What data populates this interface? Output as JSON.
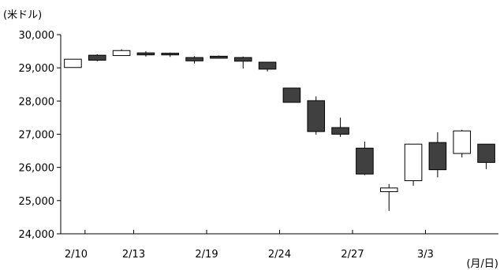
{
  "chart_data": {
    "type": "candlestick",
    "y_unit": "(米ドル)",
    "x_unit": "(月/日)",
    "ylim": [
      24000,
      30000
    ],
    "yticks": [
      24000,
      25000,
      26000,
      27000,
      28000,
      29000,
      30000
    ],
    "ytick_labels": [
      "24,000",
      "25,000",
      "26,000",
      "27,000",
      "28,000",
      "29,000",
      "30,000"
    ],
    "xtick_labels": [
      {
        "label": "2/10",
        "after_index": 0
      },
      {
        "label": "2/13",
        "after_index": 2
      },
      {
        "label": "2/19",
        "after_index": 5
      },
      {
        "label": "2/24",
        "after_index": 8
      },
      {
        "label": "2/27",
        "after_index": 11
      },
      {
        "label": "3/3",
        "after_index": 14
      }
    ],
    "grid": false,
    "legend": "none",
    "up_color": "#ffffff",
    "down_color": "#404040",
    "candles": [
      {
        "open": 29010,
        "high": 29260,
        "low": 29010,
        "close": 29260
      },
      {
        "open": 29380,
        "high": 29410,
        "low": 29200,
        "close": 29230
      },
      {
        "open": 29370,
        "high": 29560,
        "low": 29370,
        "close": 29520
      },
      {
        "open": 29450,
        "high": 29500,
        "low": 29340,
        "close": 29390
      },
      {
        "open": 29440,
        "high": 29460,
        "low": 29330,
        "close": 29390
      },
      {
        "open": 29310,
        "high": 29350,
        "low": 29130,
        "close": 29210
      },
      {
        "open": 29350,
        "high": 29370,
        "low": 29280,
        "close": 29290
      },
      {
        "open": 29310,
        "high": 29340,
        "low": 28980,
        "close": 29200
      },
      {
        "open": 29170,
        "high": 29170,
        "low": 28890,
        "close": 28960
      },
      {
        "open": 28390,
        "high": 28400,
        "low": 27960,
        "close": 27960
      },
      {
        "open": 28010,
        "high": 28140,
        "low": 26990,
        "close": 27080
      },
      {
        "open": 27200,
        "high": 27500,
        "low": 26920,
        "close": 27000
      },
      {
        "open": 26580,
        "high": 26780,
        "low": 25770,
        "close": 25800
      },
      {
        "open": 25270,
        "high": 25500,
        "low": 24690,
        "close": 25380
      },
      {
        "open": 25600,
        "high": 26700,
        "low": 25450,
        "close": 26700
      },
      {
        "open": 26750,
        "high": 27060,
        "low": 25700,
        "close": 25930
      },
      {
        "open": 26420,
        "high": 27130,
        "low": 26300,
        "close": 27100
      },
      {
        "open": 26700,
        "high": 26700,
        "low": 25950,
        "close": 26150
      }
    ]
  }
}
